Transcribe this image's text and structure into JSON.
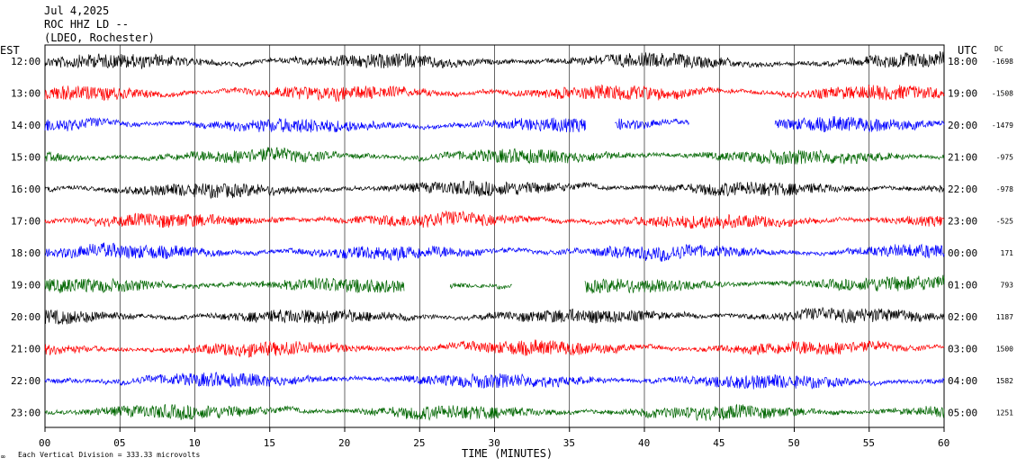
{
  "header": {
    "date": "Jul 4,2025",
    "station": "ROC HHZ LD --",
    "network": "(LDEO, Rochester)"
  },
  "labels": {
    "left_zone": "EST",
    "right_zone": "UTC",
    "dc_header": "DC",
    "xlabel": "TIME (MINUTES)",
    "footnote": "Each Vertical Division =  333.33 microvolts"
  },
  "chart_data": {
    "type": "line",
    "title": "ROC HHZ LD --",
    "xlabel": "TIME (MINUTES)",
    "xlim": [
      0,
      60
    ],
    "x_ticks": [
      "00",
      "05",
      "10",
      "15",
      "20",
      "25",
      "30",
      "35",
      "40",
      "45",
      "50",
      "55",
      "60"
    ],
    "grid": "vertical lines every 5 minutes",
    "series": [
      {
        "local": "12:00",
        "utc": "18:00",
        "dc": "-1698",
        "color": "#000000",
        "gaps": []
      },
      {
        "local": "13:00",
        "utc": "19:00",
        "dc": "-1508",
        "color": "#ff0000",
        "gaps": []
      },
      {
        "local": "14:00",
        "utc": "20:00",
        "dc": "-1479",
        "color": "#0000ff",
        "gaps": [
          [
            36.1,
            38.0
          ],
          [
            43.0,
            48.7
          ]
        ]
      },
      {
        "local": "15:00",
        "utc": "21:00",
        "dc": "-975",
        "color": "#006600",
        "gaps": []
      },
      {
        "local": "16:00",
        "utc": "22:00",
        "dc": "-978",
        "color": "#000000",
        "gaps": []
      },
      {
        "local": "17:00",
        "utc": "23:00",
        "dc": "-525",
        "color": "#ff0000",
        "gaps": []
      },
      {
        "local": "18:00",
        "utc": "00:00",
        "dc": "171",
        "color": "#0000ff",
        "gaps": []
      },
      {
        "local": "19:00",
        "utc": "01:00",
        "dc": "793",
        "color": "#006600",
        "gaps": [
          [
            24.0,
            27.0
          ],
          [
            31.2,
            36.0
          ]
        ]
      },
      {
        "local": "20:00",
        "utc": "02:00",
        "dc": "1187",
        "color": "#000000",
        "gaps": []
      },
      {
        "local": "21:00",
        "utc": "03:00",
        "dc": "1500",
        "color": "#ff0000",
        "gaps": []
      },
      {
        "local": "22:00",
        "utc": "04:00",
        "dc": "1582",
        "color": "#0000ff",
        "gaps": []
      },
      {
        "local": "23:00",
        "utc": "05:00",
        "dc": "1251",
        "color": "#006600",
        "gaps": []
      }
    ]
  }
}
